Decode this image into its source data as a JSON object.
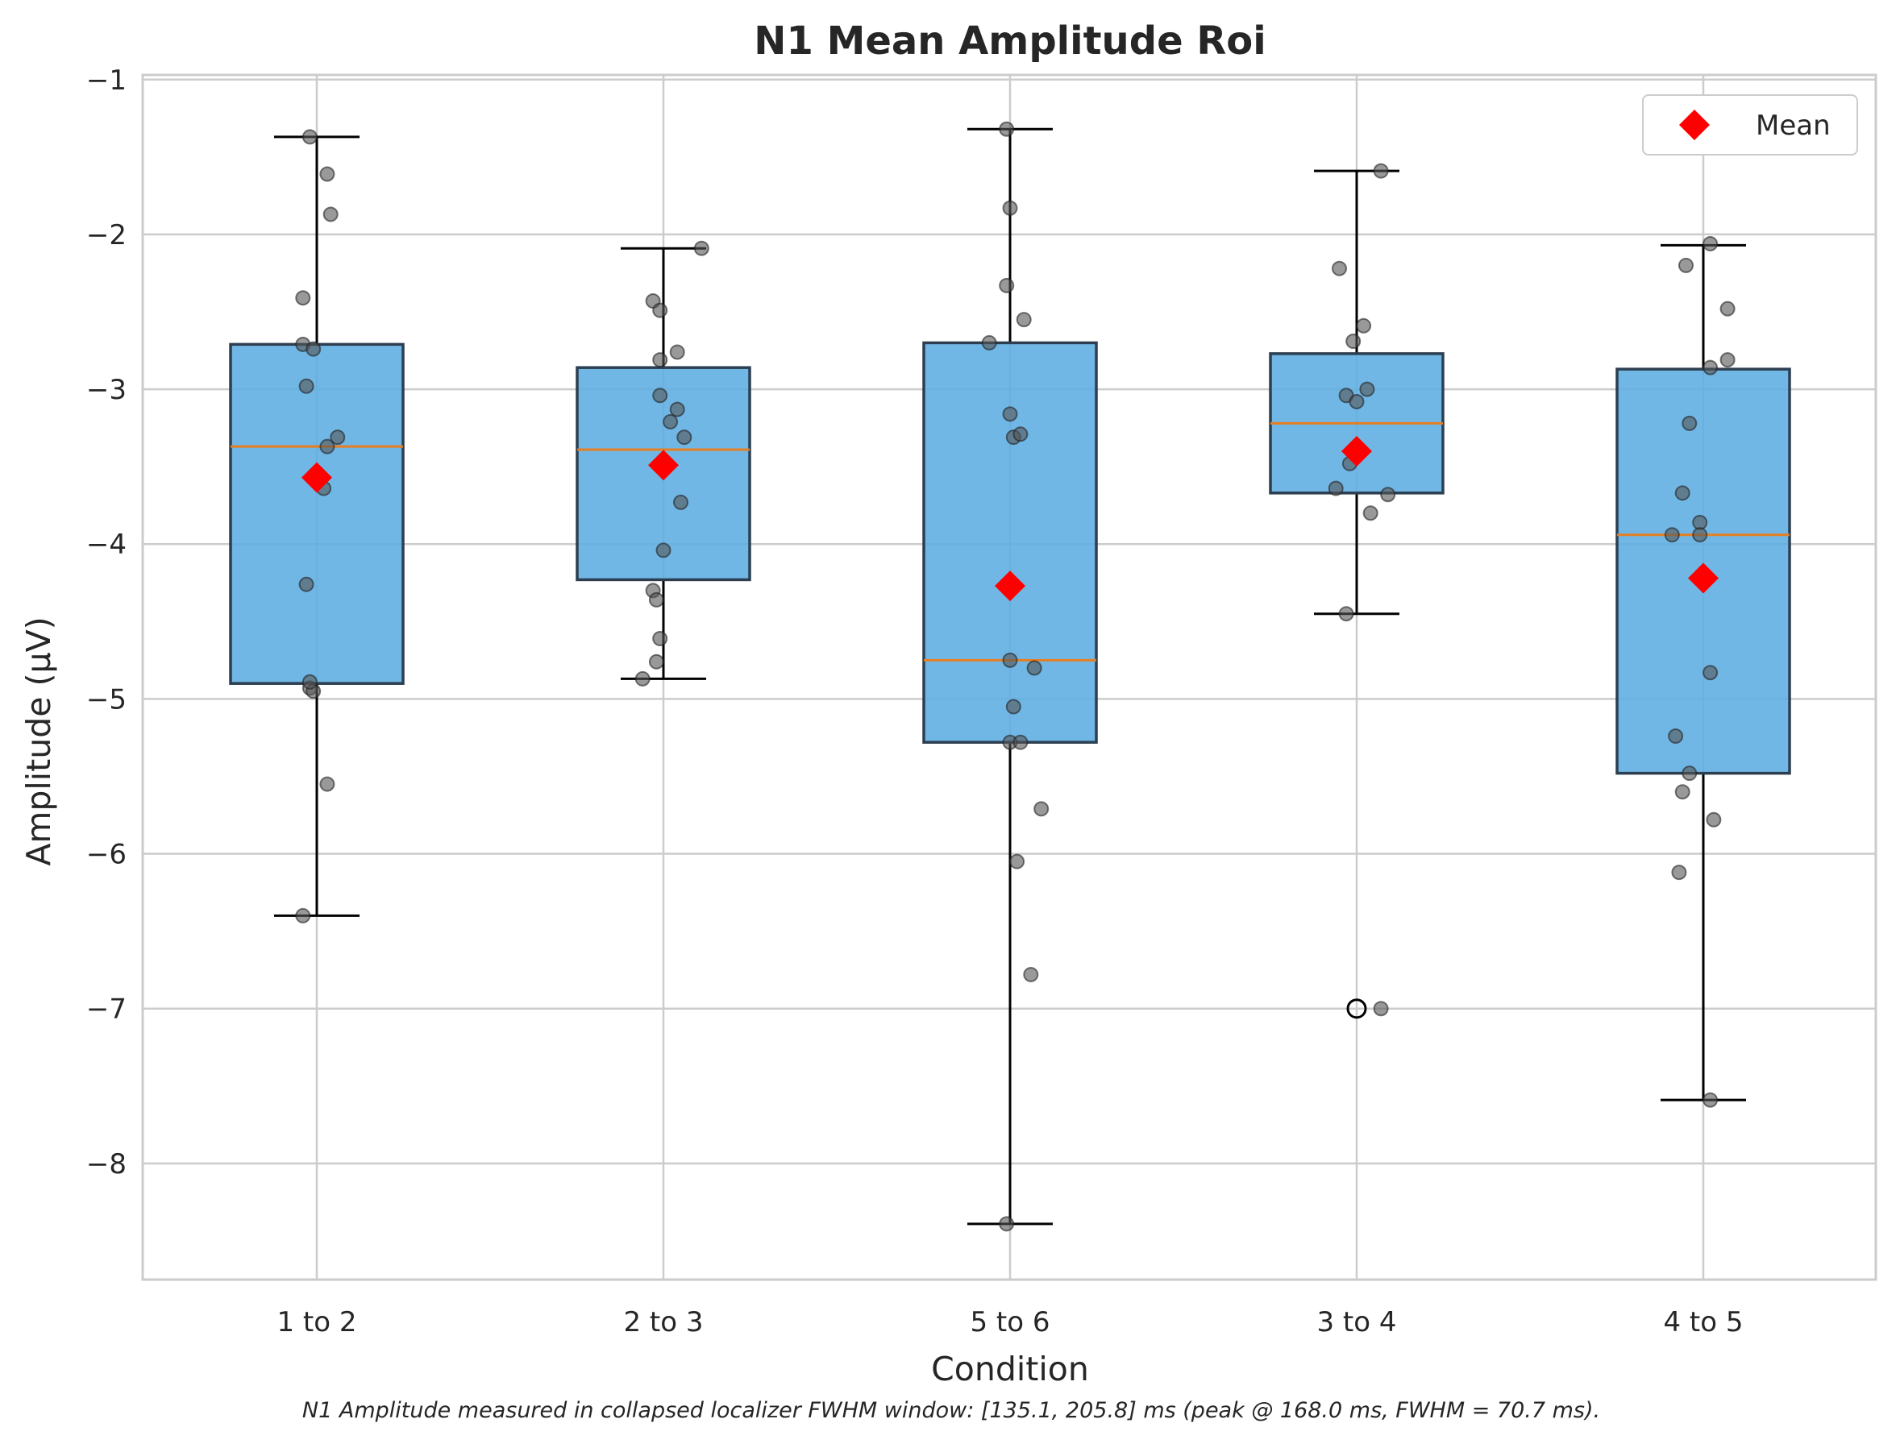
{
  "chart_data": {
    "type": "box",
    "title": "N1 Mean Amplitude Roi",
    "xlabel": "Condition",
    "ylabel": "Amplitude (μV)",
    "ylim": [
      -8.75,
      -0.97
    ],
    "yticks": [
      -1,
      -2,
      -3,
      -4,
      -5,
      -6,
      -7,
      -8
    ],
    "ytick_labels": [
      "−1",
      "−2",
      "−3",
      "−4",
      "−5",
      "−6",
      "−7",
      "−8"
    ],
    "categories": [
      "1 to 2",
      "2 to 3",
      "5 to 6",
      "3 to 4",
      "4 to 5"
    ],
    "grid": true,
    "legend": {
      "position": "top-right",
      "entries": [
        "Mean"
      ]
    },
    "footnote": "N1 Amplitude measured in collapsed localizer FWHM window: [135.1, 205.8] ms (peak @ 168.0 ms, FWHM = 70.7 ms).",
    "colors": {
      "box_fill": "#5dade2",
      "box_edge": "#2c3e50",
      "median": "#e67e22",
      "mean_marker": "#ff0000",
      "points": "#555555",
      "grid": "#cccccc"
    },
    "boxes": [
      {
        "category": "1 to 2",
        "whisker_low": -6.4,
        "q1": -4.9,
        "median": -3.37,
        "q3": -2.71,
        "whisker_high": -1.37,
        "mean": -3.57,
        "outliers": [],
        "points": [
          [
            -0.02,
            -1.37
          ],
          [
            0.03,
            -1.61
          ],
          [
            0.04,
            -1.87
          ],
          [
            -0.04,
            -2.41
          ],
          [
            -0.04,
            -2.71
          ],
          [
            -0.01,
            -2.74
          ],
          [
            -0.03,
            -2.98
          ],
          [
            0.06,
            -3.31
          ],
          [
            0.03,
            -3.37
          ],
          [
            0.02,
            -3.64
          ],
          [
            -0.03,
            -4.26
          ],
          [
            -0.02,
            -4.93
          ],
          [
            -0.01,
            -4.95
          ],
          [
            -0.02,
            -4.89
          ],
          [
            0.03,
            -5.55
          ],
          [
            -0.04,
            -6.4
          ]
        ]
      },
      {
        "category": "2 to 3",
        "whisker_low": -4.87,
        "q1": -4.23,
        "median": -3.39,
        "q3": -2.86,
        "whisker_high": -2.09,
        "mean": -3.49,
        "outliers": [],
        "points": [
          [
            0.11,
            -2.09
          ],
          [
            -0.03,
            -2.43
          ],
          [
            -0.01,
            -2.49
          ],
          [
            0.04,
            -2.76
          ],
          [
            -0.01,
            -2.81
          ],
          [
            -0.01,
            -3.04
          ],
          [
            0.04,
            -3.13
          ],
          [
            0.02,
            -3.21
          ],
          [
            0.06,
            -3.31
          ],
          [
            0.05,
            -3.73
          ],
          [
            -0.0,
            -4.04
          ],
          [
            -0.03,
            -4.3
          ],
          [
            -0.02,
            -4.36
          ],
          [
            -0.01,
            -4.61
          ],
          [
            -0.02,
            -4.76
          ],
          [
            -0.06,
            -4.87
          ]
        ]
      },
      {
        "category": "5 to 6",
        "whisker_low": -8.39,
        "q1": -5.28,
        "median": -4.75,
        "q3": -2.7,
        "whisker_high": -1.32,
        "mean": -4.27,
        "outliers": [],
        "points": [
          [
            -0.01,
            -1.32
          ],
          [
            -0.0,
            -1.83
          ],
          [
            -0.01,
            -2.33
          ],
          [
            0.04,
            -2.55
          ],
          [
            -0.06,
            -2.7
          ],
          [
            -0.0,
            -3.16
          ],
          [
            0.01,
            -3.31
          ],
          [
            0.03,
            -3.29
          ],
          [
            0.0,
            -4.75
          ],
          [
            0.07,
            -4.8
          ],
          [
            0.01,
            -5.05
          ],
          [
            -0.0,
            -5.28
          ],
          [
            0.03,
            -5.28
          ],
          [
            0.09,
            -5.71
          ],
          [
            0.02,
            -6.05
          ],
          [
            0.06,
            -6.78
          ],
          [
            -0.01,
            -8.39
          ]
        ]
      },
      {
        "category": "3 to 4",
        "whisker_low": -4.45,
        "q1": -3.67,
        "median": -3.22,
        "q3": -2.77,
        "whisker_high": -1.59,
        "mean": -3.4,
        "outliers": [
          -7.0
        ],
        "points": [
          [
            0.07,
            -1.59
          ],
          [
            -0.05,
            -2.22
          ],
          [
            0.02,
            -2.59
          ],
          [
            -0.01,
            -2.69
          ],
          [
            0.03,
            -3.0
          ],
          [
            -0.03,
            -3.04
          ],
          [
            -0.0,
            -3.08
          ],
          [
            -0.02,
            -3.48
          ],
          [
            -0.06,
            -3.64
          ],
          [
            0.09,
            -3.68
          ],
          [
            0.04,
            -3.8
          ],
          [
            -0.03,
            -4.45
          ],
          [
            0.07,
            -7.0
          ]
        ]
      },
      {
        "category": "4 to 5",
        "whisker_low": -7.59,
        "q1": -5.48,
        "median": -3.94,
        "q3": -2.87,
        "whisker_high": -2.07,
        "mean": -4.22,
        "outliers": [],
        "points": [
          [
            0.02,
            -2.06
          ],
          [
            -0.05,
            -2.2
          ],
          [
            0.07,
            -2.48
          ],
          [
            0.07,
            -2.81
          ],
          [
            0.02,
            -2.86
          ],
          [
            -0.04,
            -3.22
          ],
          [
            -0.06,
            -3.67
          ],
          [
            -0.01,
            -3.86
          ],
          [
            -0.09,
            -3.94
          ],
          [
            -0.01,
            -3.94
          ],
          [
            0.02,
            -4.83
          ],
          [
            -0.08,
            -5.24
          ],
          [
            -0.04,
            -5.48
          ],
          [
            -0.06,
            -5.6
          ],
          [
            0.03,
            -5.78
          ],
          [
            -0.07,
            -6.12
          ],
          [
            0.02,
            -7.59
          ]
        ]
      }
    ]
  }
}
